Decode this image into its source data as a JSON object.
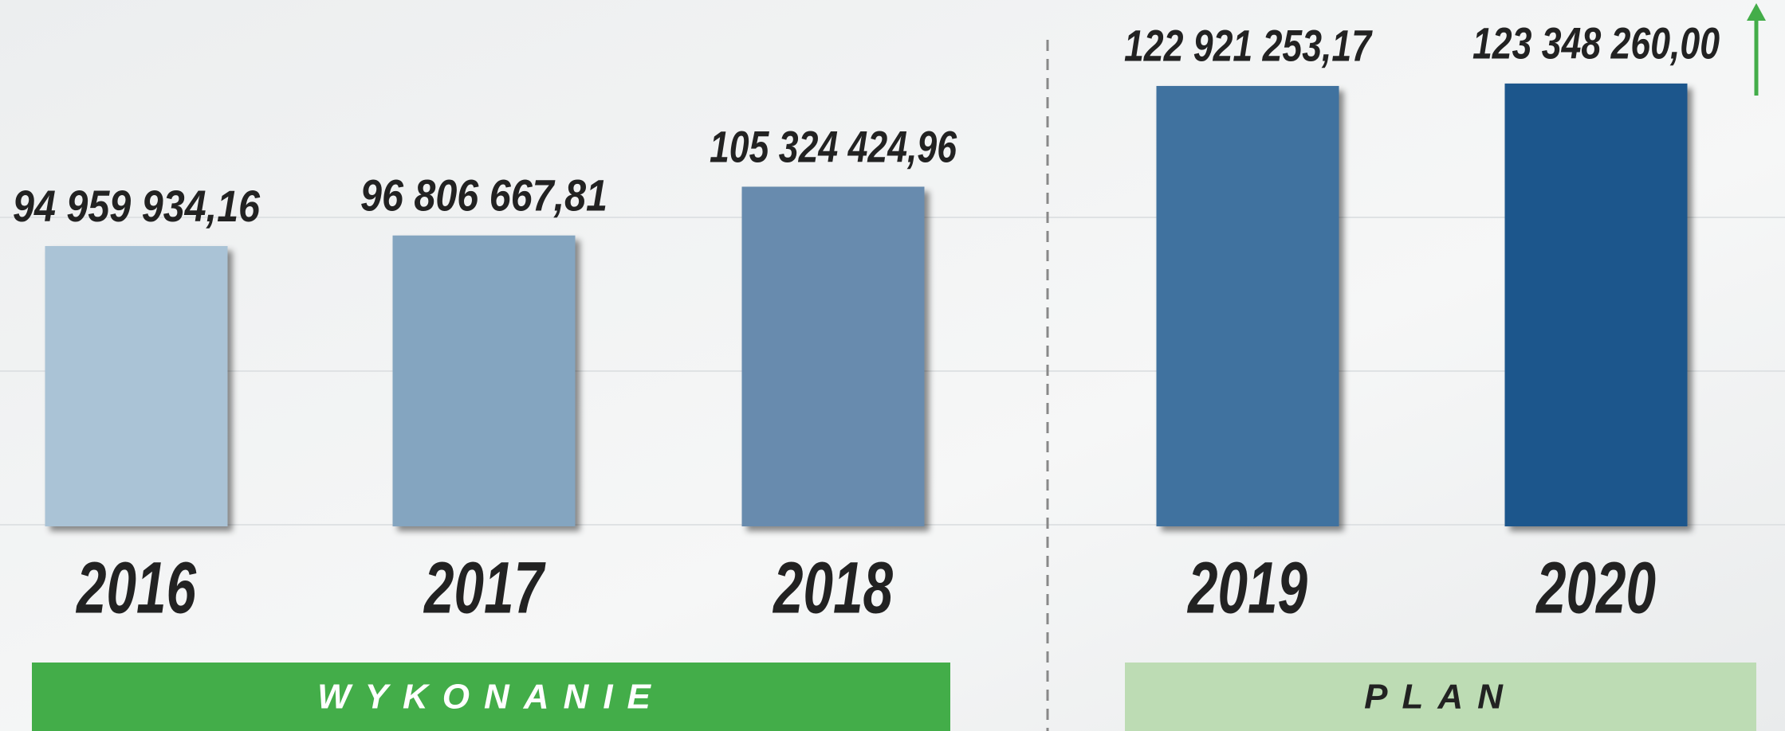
{
  "chart_data": {
    "type": "bar",
    "categories": [
      "2016",
      "2017",
      "2018",
      "2019",
      "2020"
    ],
    "values": [
      94959934.16,
      96806667.81,
      105324424.96,
      122921253.17,
      123348260.0
    ],
    "value_labels": [
      "94 959 934,16",
      "96 806 667,81",
      "105 324 424,96",
      "122 921 253,17",
      "123 348 260,00"
    ],
    "colors": [
      "#aac3d6",
      "#84a5c0",
      "#678bae",
      "#41729f",
      "#1a568c"
    ],
    "ylim": [
      46000000,
      125000000
    ],
    "groups": [
      {
        "label": "WYKONANIE",
        "color": "#43ad49",
        "text_color": "#ffffff"
      },
      {
        "label": "PLAN",
        "color": "#bddcb4",
        "text_color": "#222222"
      }
    ]
  }
}
